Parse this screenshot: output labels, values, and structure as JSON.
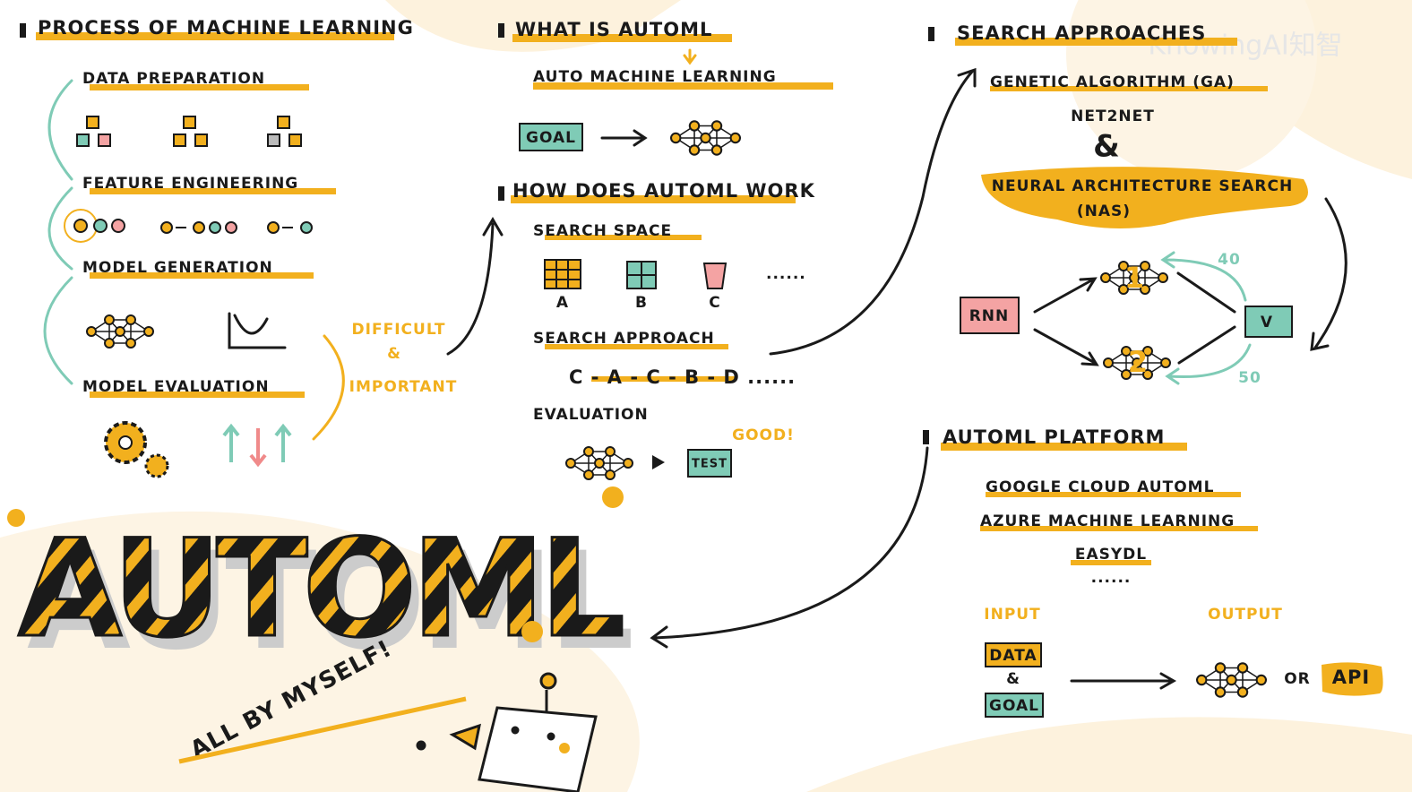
{
  "section1": {
    "title": "PROCESS OF MACHINE LEARNING",
    "steps": [
      "DATA PREPARATION",
      "FEATURE ENGINEERING",
      "MODEL GENERATION",
      "MODEL EVALUATION"
    ],
    "note": [
      "DIFFICULT",
      "&",
      "IMPORTANT"
    ]
  },
  "section2": {
    "title": "WHAT IS AUTOML",
    "expansion": "AUTO MACHINE LEARNING",
    "goal": "GOAL",
    "how_title": "HOW DOES AUTOML WORK",
    "search_space": {
      "label": "SEARCH SPACE",
      "options": [
        "A",
        "B",
        "C"
      ],
      "more": "......"
    },
    "search_approach": {
      "label": "SEARCH APPROACH",
      "sequence": "C - A - C - B - D ......"
    },
    "evaluation": {
      "label": "EVALUATION",
      "test": "TEST",
      "result": "GOOD!"
    }
  },
  "section3": {
    "title": "SEARCH APPROACHES",
    "items": [
      "GENETIC ALGORITHM (GA)",
      "NET2NET",
      "&"
    ],
    "nas": [
      "NEURAL ARCHITECTURE SEARCH",
      "(NAS)"
    ],
    "rnn": "RNN",
    "models": [
      "1",
      "2"
    ],
    "scores": [
      "40",
      "50"
    ],
    "check": "V"
  },
  "section4": {
    "title": "AUTOML PLATFORM",
    "platforms": [
      "GOOGLE CLOUD AUTOML",
      "AZURE MACHINE LEARNING",
      "EASYDL",
      "......"
    ],
    "input": "INPUT",
    "output": "OUTPUT",
    "inputs": [
      "DATA",
      "&",
      "GOAL"
    ],
    "or": "OR",
    "api": "API"
  },
  "hero": {
    "title": "AUTOML",
    "tagline": "ALL BY MYSELF!"
  },
  "watermark": "KnowingAI知智"
}
